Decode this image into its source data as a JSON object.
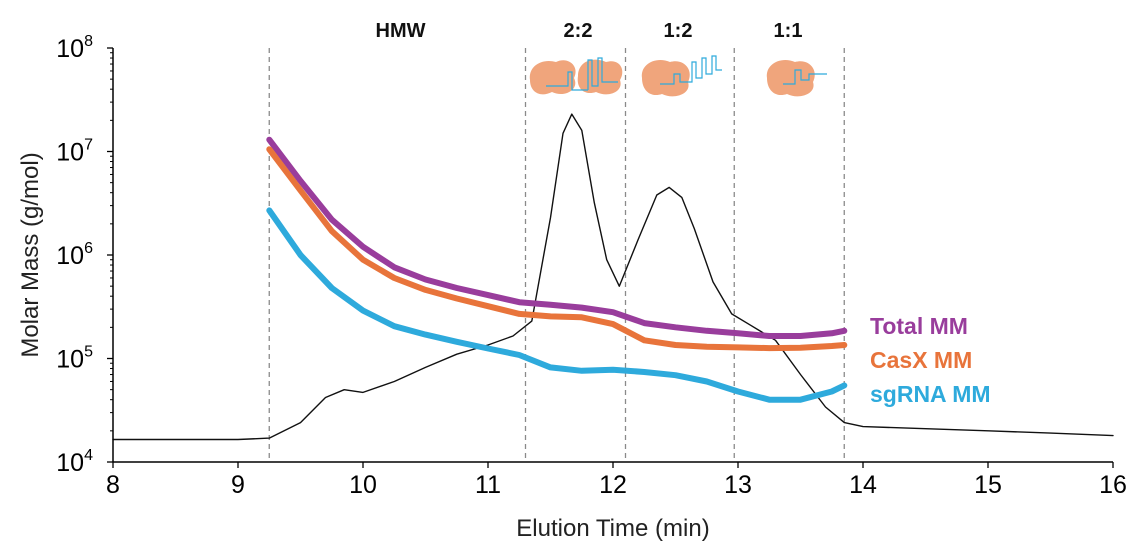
{
  "chart_data": {
    "type": "line",
    "title": "",
    "xlabel": "Elution Time (min)",
    "ylabel": "Molar Mass (g/mol)",
    "xlim": [
      8,
      16
    ],
    "ylim": [
      10000,
      100000000
    ],
    "yscale": "log",
    "x_ticks": [
      8,
      9,
      10,
      11,
      12,
      13,
      14,
      15,
      16
    ],
    "y_ticks": [
      {
        "value": 10000,
        "base": "10",
        "exp": "4"
      },
      {
        "value": 100000,
        "base": "10",
        "exp": "5"
      },
      {
        "value": 1000000,
        "base": "10",
        "exp": "6"
      },
      {
        "value": 10000000,
        "base": "10",
        "exp": "7"
      },
      {
        "value": 100000000,
        "base": "10",
        "exp": "8"
      }
    ],
    "grid": false,
    "legend_position": "right",
    "vlines": [
      9.25,
      11.3,
      12.1,
      12.97,
      13.85
    ],
    "regions": [
      {
        "label": "HMW",
        "x": 10.3
      },
      {
        "label": "2:2",
        "x": 11.72
      },
      {
        "label": "1:2",
        "x": 12.52
      },
      {
        "label": "1:1",
        "x": 13.4
      }
    ],
    "series": [
      {
        "name": "Total MM",
        "color": "#993d9c",
        "x": [
          9.25,
          9.5,
          9.75,
          10.0,
          10.25,
          10.5,
          10.75,
          11.0,
          11.25,
          11.5,
          11.75,
          12.0,
          12.25,
          12.5,
          12.75,
          13.0,
          13.25,
          13.5,
          13.75,
          13.85
        ],
        "y": [
          13000000,
          5200000,
          2200000,
          1200000,
          760000,
          580000,
          480000,
          410000,
          350000,
          330000,
          310000,
          280000,
          220000,
          200000,
          185000,
          175000,
          165000,
          165000,
          175000,
          185000
        ]
      },
      {
        "name": "CasX MM",
        "color": "#e8743b",
        "x": [
          9.25,
          9.5,
          9.75,
          10.0,
          10.25,
          10.5,
          10.75,
          11.0,
          11.25,
          11.5,
          11.75,
          12.0,
          12.25,
          12.5,
          12.75,
          13.0,
          13.25,
          13.5,
          13.75,
          13.85
        ],
        "y": [
          10500000,
          4200000,
          1700000,
          900000,
          600000,
          460000,
          380000,
          320000,
          270000,
          255000,
          250000,
          215000,
          150000,
          135000,
          130000,
          128000,
          126000,
          127000,
          132000,
          135000
        ]
      },
      {
        "name": "sgRNA MM",
        "color": "#2eaadc",
        "x": [
          9.25,
          9.5,
          9.75,
          10.0,
          10.25,
          10.5,
          10.75,
          11.0,
          11.25,
          11.5,
          11.75,
          12.0,
          12.25,
          12.5,
          12.75,
          13.0,
          13.25,
          13.5,
          13.75,
          13.85
        ],
        "y": [
          2700000,
          1000000,
          480000,
          290000,
          205000,
          170000,
          145000,
          125000,
          108000,
          82000,
          76000,
          78000,
          74000,
          69000,
          60000,
          48000,
          40000,
          40000,
          48000,
          55000
        ]
      },
      {
        "name": "",
        "color": "#111111",
        "x": [
          8.0,
          9.0,
          9.25,
          9.5,
          9.7,
          9.85,
          10.0,
          10.25,
          10.5,
          10.75,
          11.0,
          11.2,
          11.35,
          11.5,
          11.6,
          11.67,
          11.75,
          11.85,
          11.95,
          12.05,
          12.2,
          12.35,
          12.45,
          12.55,
          12.65,
          12.8,
          12.95,
          13.1,
          13.3,
          13.5,
          13.7,
          13.85,
          14.0,
          14.5,
          15.0,
          15.5,
          16.0
        ],
        "y": [
          16500,
          16500,
          17000,
          24000,
          42000,
          50000,
          47000,
          60000,
          82000,
          110000,
          135000,
          165000,
          230000,
          2300000,
          15000000,
          23000000,
          16000000,
          3200000,
          900000,
          500000,
          1400000,
          3800000,
          4500000,
          3600000,
          1800000,
          550000,
          270000,
          210000,
          150000,
          70000,
          34000,
          24000,
          22000,
          21000,
          20000,
          19000,
          18000
        ]
      }
    ]
  }
}
